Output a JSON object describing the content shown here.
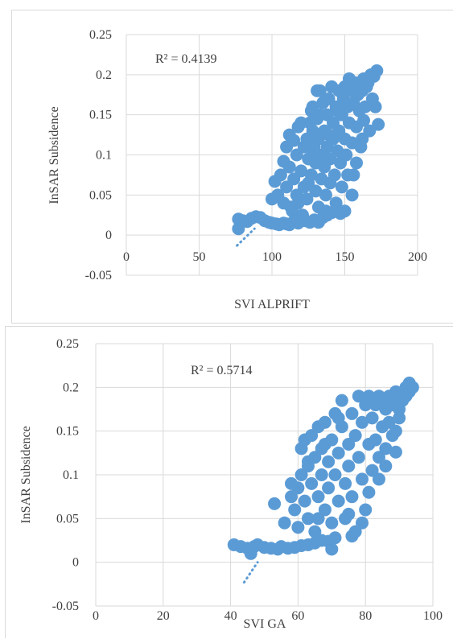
{
  "chart_data": [
    {
      "type": "scatter",
      "title": "",
      "xlabel": "SVI ALPRIFT",
      "ylabel": "InSAR Subsidence",
      "annotation": "R² = 0.4139",
      "xlim": [
        0,
        200
      ],
      "ylim": [
        -0.05,
        0.25
      ],
      "xticks": [
        0,
        50,
        100,
        150,
        200
      ],
      "yticks": [
        -0.05,
        0,
        0.05,
        0.1,
        0.15,
        0.2,
        0.25
      ],
      "xtick_labels": [
        "0",
        "50",
        "100",
        "150",
        "200"
      ],
      "ytick_labels": [
        "-0.05",
        "0",
        "0.05",
        "0.1",
        "0.15",
        "0.2",
        "0.25"
      ],
      "grid": true,
      "color": "#5b9bd5",
      "trendline": {
        "style": "dotted",
        "x": [
          76,
          88
        ],
        "y": [
          -0.013,
          0.008
        ]
      },
      "points": [
        [
          77,
          0.008
        ],
        [
          77,
          0.02
        ],
        [
          80,
          0.018
        ],
        [
          83,
          0.017
        ],
        [
          86,
          0.021
        ],
        [
          89,
          0.023
        ],
        [
          92,
          0.022
        ],
        [
          95,
          0.018
        ],
        [
          98,
          0.016
        ],
        [
          100,
          0.015
        ],
        [
          103,
          0.014
        ],
        [
          105,
          0.013
        ],
        [
          108,
          0.015
        ],
        [
          110,
          0.014
        ],
        [
          112,
          0.013
        ],
        [
          115,
          0.017
        ],
        [
          118,
          0.015
        ],
        [
          120,
          0.02
        ],
        [
          123,
          0.018
        ],
        [
          126,
          0.016
        ],
        [
          129,
          0.019
        ],
        [
          132,
          0.016
        ],
        [
          135,
          0.022
        ],
        [
          138,
          0.025
        ],
        [
          141,
          0.028
        ],
        [
          144,
          0.03
        ],
        [
          147,
          0.027
        ],
        [
          150,
          0.03
        ],
        [
          100,
          0.045
        ],
        [
          102,
          0.067
        ],
        [
          104,
          0.05
        ],
        [
          106,
          0.075
        ],
        [
          108,
          0.092
        ],
        [
          108,
          0.04
        ],
        [
          110,
          0.11
        ],
        [
          110,
          0.06
        ],
        [
          112,
          0.125
        ],
        [
          112,
          0.085
        ],
        [
          113,
          0.035
        ],
        [
          115,
          0.118
        ],
        [
          115,
          0.07
        ],
        [
          117,
          0.1
        ],
        [
          117,
          0.05
        ],
        [
          118,
          0.135
        ],
        [
          120,
          0.08
        ],
        [
          120,
          0.14
        ],
        [
          122,
          0.11
        ],
        [
          122,
          0.06
        ],
        [
          124,
          0.12
        ],
        [
          124,
          0.045
        ],
        [
          125,
          0.095
        ],
        [
          126,
          0.14
        ],
        [
          127,
          0.075
        ],
        [
          128,
          0.16
        ],
        [
          128,
          0.13
        ],
        [
          129,
          0.11
        ],
        [
          130,
          0.09
        ],
        [
          130,
          0.055
        ],
        [
          131,
          0.18
        ],
        [
          132,
          0.12
        ],
        [
          132,
          0.035
        ],
        [
          133,
          0.15
        ],
        [
          134,
          0.1
        ],
        [
          134,
          0.07
        ],
        [
          135,
          0.165
        ],
        [
          136,
          0.13
        ],
        [
          136,
          0.085
        ],
        [
          137,
          0.05
        ],
        [
          138,
          0.15
        ],
        [
          138,
          0.11
        ],
        [
          139,
          0.17
        ],
        [
          140,
          0.095
        ],
        [
          140,
          0.065
        ],
        [
          141,
          0.185
        ],
        [
          142,
          0.14
        ],
        [
          142,
          0.12
        ],
        [
          143,
          0.075
        ],
        [
          144,
          0.16
        ],
        [
          144,
          0.04
        ],
        [
          145,
          0.105
        ],
        [
          146,
          0.18
        ],
        [
          146,
          0.13
        ],
        [
          147,
          0.09
        ],
        [
          148,
          0.15
        ],
        [
          148,
          0.06
        ],
        [
          149,
          0.17
        ],
        [
          150,
          0.12
        ],
        [
          150,
          0.185
        ],
        [
          151,
          0.1
        ],
        [
          152,
          0.16
        ],
        [
          152,
          0.075
        ],
        [
          153,
          0.14
        ],
        [
          154,
          0.18
        ],
        [
          155,
          0.115
        ],
        [
          155,
          0.05
        ],
        [
          156,
          0.165
        ],
        [
          157,
          0.19
        ],
        [
          158,
          0.135
        ],
        [
          159,
          0.175
        ],
        [
          160,
          0.19
        ],
        [
          160,
          0.155
        ],
        [
          161,
          0.11
        ],
        [
          162,
          0.18
        ],
        [
          163,
          0.195
        ],
        [
          164,
          0.16
        ],
        [
          165,
          0.185
        ],
        [
          166,
          0.19
        ],
        [
          167,
          0.13
        ],
        [
          168,
          0.2
        ],
        [
          169,
          0.17
        ],
        [
          170,
          0.198
        ],
        [
          171,
          0.16
        ],
        [
          172,
          0.205
        ],
        [
          173,
          0.138
        ],
        [
          162,
          0.12
        ],
        [
          158,
          0.09
        ],
        [
          156,
          0.075
        ],
        [
          163,
          0.143
        ],
        [
          133,
          0.18
        ],
        [
          128,
          0.1
        ],
        [
          118,
          0.04
        ],
        [
          121,
          0.025
        ],
        [
          114,
          0.03
        ],
        [
          137,
          0.03
        ],
        [
          125,
          0.065
        ],
        [
          145,
          0.155
        ],
        [
          153,
          0.195
        ],
        [
          139,
          0.125
        ],
        [
          131,
          0.145
        ],
        [
          127,
          0.155
        ]
      ]
    },
    {
      "type": "scatter",
      "title": "",
      "xlabel": "SVI GA",
      "ylabel": "InSAR Subsidence",
      "annotation": "R² = 0.5714",
      "xlim": [
        0,
        100
      ],
      "ylim": [
        -0.05,
        0.25
      ],
      "xticks": [
        0,
        20,
        40,
        60,
        80,
        100
      ],
      "yticks": [
        -0.05,
        0,
        0.05,
        0.1,
        0.15,
        0.2,
        0.25
      ],
      "xtick_labels": [
        "0",
        "20",
        "40",
        "60",
        "80",
        "100"
      ],
      "ytick_labels": [
        "-0.05",
        "0",
        "0.05",
        "0.1",
        "0.15",
        "0.2",
        "0.25"
      ],
      "grid": true,
      "color": "#5b9bd5",
      "trendline": {
        "style": "dotted",
        "x": [
          44,
          48
        ],
        "y": [
          -0.023,
          0.0
        ]
      },
      "points": [
        [
          41,
          0.02
        ],
        [
          43,
          0.018
        ],
        [
          45,
          0.016
        ],
        [
          46,
          0.01
        ],
        [
          47,
          0.018
        ],
        [
          48,
          0.02
        ],
        [
          50,
          0.017
        ],
        [
          52,
          0.016
        ],
        [
          54,
          0.015
        ],
        [
          55,
          0.018
        ],
        [
          57,
          0.016
        ],
        [
          59,
          0.017
        ],
        [
          61,
          0.019
        ],
        [
          63,
          0.02
        ],
        [
          65,
          0.022
        ],
        [
          67,
          0.025
        ],
        [
          69,
          0.024
        ],
        [
          71,
          0.028
        ],
        [
          53,
          0.067
        ],
        [
          56,
          0.045
        ],
        [
          58,
          0.075
        ],
        [
          59,
          0.06
        ],
        [
          60,
          0.085
        ],
        [
          60,
          0.04
        ],
        [
          61,
          0.1
        ],
        [
          61,
          0.13
        ],
        [
          62,
          0.07
        ],
        [
          62,
          0.14
        ],
        [
          63,
          0.11
        ],
        [
          63,
          0.05
        ],
        [
          64,
          0.09
        ],
        [
          64,
          0.145
        ],
        [
          65,
          0.12
        ],
        [
          65,
          0.035
        ],
        [
          66,
          0.075
        ],
        [
          66,
          0.155
        ],
        [
          67,
          0.1
        ],
        [
          67,
          0.13
        ],
        [
          68,
          0.06
        ],
        [
          68,
          0.16
        ],
        [
          69,
          0.115
        ],
        [
          69,
          0.085
        ],
        [
          70,
          0.14
        ],
        [
          70,
          0.045
        ],
        [
          71,
          0.17
        ],
        [
          71,
          0.1
        ],
        [
          72,
          0.125
        ],
        [
          72,
          0.07
        ],
        [
          73,
          0.155
        ],
        [
          73,
          0.185
        ],
        [
          74,
          0.09
        ],
        [
          74,
          0.05
        ],
        [
          75,
          0.135
        ],
        [
          75,
          0.11
        ],
        [
          76,
          0.17
        ],
        [
          76,
          0.075
        ],
        [
          77,
          0.145
        ],
        [
          77,
          0.035
        ],
        [
          78,
          0.19
        ],
        [
          78,
          0.12
        ],
        [
          79,
          0.095
        ],
        [
          79,
          0.16
        ],
        [
          80,
          0.18
        ],
        [
          80,
          0.06
        ],
        [
          81,
          0.135
        ],
        [
          81,
          0.19
        ],
        [
          82,
          0.105
        ],
        [
          82,
          0.165
        ],
        [
          83,
          0.18
        ],
        [
          83,
          0.14
        ],
        [
          84,
          0.19
        ],
        [
          84,
          0.12
        ],
        [
          85,
          0.155
        ],
        [
          85,
          0.185
        ],
        [
          86,
          0.13
        ],
        [
          86,
          0.175
        ],
        [
          87,
          0.19
        ],
        [
          87,
          0.16
        ],
        [
          88,
          0.145
        ],
        [
          88,
          0.18
        ],
        [
          89,
          0.195
        ],
        [
          89,
          0.15
        ],
        [
          90,
          0.175
        ],
        [
          90,
          0.19
        ],
        [
          91,
          0.185
        ],
        [
          92,
          0.2
        ],
        [
          92,
          0.19
        ],
        [
          93,
          0.205
        ],
        [
          93,
          0.195
        ],
        [
          94,
          0.2
        ],
        [
          86,
          0.11
        ],
        [
          84,
          0.095
        ],
        [
          90,
          0.165
        ],
        [
          89,
          0.126
        ],
        [
          76,
          0.03
        ],
        [
          70,
          0.015
        ],
        [
          66,
          0.05
        ],
        [
          63,
          0.115
        ],
        [
          58,
          0.09
        ],
        [
          75,
          0.055
        ],
        [
          79,
          0.045
        ],
        [
          81,
          0.08
        ],
        [
          68,
          0.135
        ],
        [
          72,
          0.165
        ]
      ]
    }
  ]
}
